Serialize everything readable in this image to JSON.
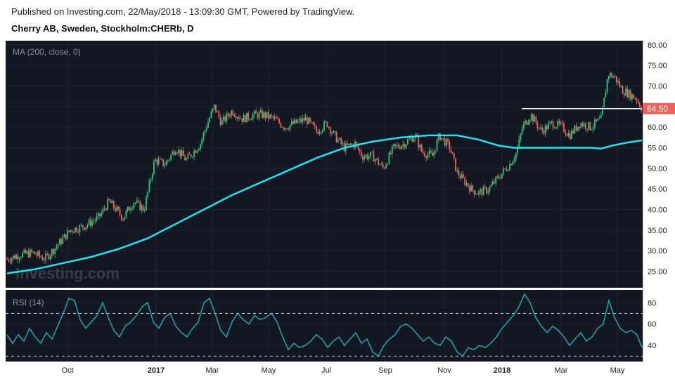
{
  "header": {
    "published": "Published on Investing.com, 22/May/2018 - 13:09:30 GMT, Powered by TradingView.",
    "symbol": "Cherry AB, Sweden, Stockholm:CHERb, D"
  },
  "watermark": "Investing.com",
  "colors": {
    "panel_bg": "#131722",
    "up": "#26c97a",
    "down": "#f0615d",
    "ma": "#1ee3f0",
    "rsi": "#1fa0a8",
    "resistance": "#ffffff",
    "price_badge": "#f0615d"
  },
  "chart_data": [
    {
      "type": "candlestick",
      "indicator_label": "MA (200, close, 0)",
      "x_ticks": [
        "Oct",
        "2017",
        "Mar",
        "May",
        "Jul",
        "Sep",
        "Nov",
        "2018",
        "Mar",
        "May"
      ],
      "y_ticks": [
        25,
        30,
        35,
        40,
        45,
        50,
        55,
        60,
        65,
        70,
        75,
        80
      ],
      "y_tick_labels": [
        "25.00",
        "30.00",
        "35.00",
        "40.00",
        "45.00",
        "50.00",
        "55.00",
        "60.00",
        "65.00",
        "70.00",
        "75.00",
        "80.00"
      ],
      "ylim": [
        21,
        81
      ],
      "last_price": 64.5,
      "last_price_label": "64.50",
      "resistance_level": 64.5,
      "price_path": [
        [
          0,
          28
        ],
        [
          18,
          29
        ],
        [
          36,
          29.5
        ],
        [
          54,
          28
        ],
        [
          70,
          31
        ],
        [
          90,
          35
        ],
        [
          110,
          36
        ],
        [
          130,
          38
        ],
        [
          145,
          42
        ],
        [
          165,
          38
        ],
        [
          180,
          42
        ],
        [
          195,
          40
        ],
        [
          210,
          52
        ],
        [
          225,
          51
        ],
        [
          240,
          55
        ],
        [
          255,
          52
        ],
        [
          275,
          56
        ],
        [
          285,
          61
        ],
        [
          295,
          65
        ],
        [
          305,
          61
        ],
        [
          320,
          64
        ],
        [
          335,
          62
        ],
        [
          350,
          63
        ],
        [
          365,
          63
        ],
        [
          380,
          62
        ],
        [
          395,
          60
        ],
        [
          410,
          61
        ],
        [
          425,
          62
        ],
        [
          440,
          59
        ],
        [
          455,
          61
        ],
        [
          465,
          58
        ],
        [
          480,
          55
        ],
        [
          495,
          56
        ],
        [
          505,
          53
        ],
        [
          520,
          53
        ],
        [
          535,
          50
        ],
        [
          550,
          55
        ],
        [
          565,
          56
        ],
        [
          580,
          58
        ],
        [
          590,
          54
        ],
        [
          605,
          53
        ],
        [
          615,
          58
        ],
        [
          630,
          55
        ],
        [
          640,
          49
        ],
        [
          650,
          47
        ],
        [
          660,
          45
        ],
        [
          670,
          44
        ],
        [
          685,
          45
        ],
        [
          700,
          48
        ],
        [
          715,
          51
        ],
        [
          725,
          54
        ],
        [
          733,
          60
        ],
        [
          745,
          63
        ],
        [
          760,
          59
        ],
        [
          775,
          61
        ],
        [
          790,
          60
        ],
        [
          800,
          58
        ],
        [
          815,
          61
        ],
        [
          830,
          60
        ],
        [
          845,
          62
        ],
        [
          855,
          73
        ],
        [
          865,
          72
        ],
        [
          875,
          69
        ],
        [
          885,
          68
        ],
        [
          895,
          67
        ],
        [
          903,
          64.5
        ]
      ],
      "ma_path": [
        [
          0,
          24.5
        ],
        [
          40,
          25.5
        ],
        [
          80,
          27
        ],
        [
          120,
          28.5
        ],
        [
          160,
          30.5
        ],
        [
          200,
          33
        ],
        [
          240,
          36.5
        ],
        [
          280,
          40
        ],
        [
          320,
          43.5
        ],
        [
          360,
          46.5
        ],
        [
          400,
          49.5
        ],
        [
          440,
          52.5
        ],
        [
          480,
          55
        ],
        [
          520,
          56.5
        ],
        [
          560,
          57.5
        ],
        [
          600,
          58
        ],
        [
          640,
          58
        ],
        [
          670,
          57
        ],
        [
          700,
          55.5
        ],
        [
          720,
          55
        ],
        [
          760,
          55
        ],
        [
          800,
          55
        ],
        [
          830,
          55
        ],
        [
          845,
          54.8
        ],
        [
          860,
          55.5
        ],
        [
          880,
          56.2
        ],
        [
          903,
          56.8
        ]
      ],
      "resistance_x": [
        732,
        903
      ]
    },
    {
      "type": "line",
      "indicator_label": "RSI (14)",
      "y_ticks": [
        40,
        60,
        80
      ],
      "ylim": [
        25,
        92
      ],
      "bands": [
        70,
        30
      ],
      "rsi_path": [
        [
          0,
          50
        ],
        [
          8,
          42
        ],
        [
          16,
          50
        ],
        [
          24,
          44
        ],
        [
          32,
          56
        ],
        [
          40,
          48
        ],
        [
          48,
          42
        ],
        [
          56,
          52
        ],
        [
          64,
          46
        ],
        [
          72,
          58
        ],
        [
          80,
          70
        ],
        [
          88,
          84
        ],
        [
          96,
          82
        ],
        [
          104,
          64
        ],
        [
          112,
          56
        ],
        [
          120,
          62
        ],
        [
          128,
          68
        ],
        [
          136,
          80
        ],
        [
          144,
          66
        ],
        [
          152,
          54
        ],
        [
          160,
          48
        ],
        [
          168,
          58
        ],
        [
          176,
          62
        ],
        [
          184,
          68
        ],
        [
          192,
          76
        ],
        [
          200,
          80
        ],
        [
          208,
          62
        ],
        [
          216,
          56
        ],
        [
          224,
          66
        ],
        [
          232,
          70
        ],
        [
          240,
          58
        ],
        [
          248,
          52
        ],
        [
          256,
          48
        ],
        [
          264,
          56
        ],
        [
          272,
          62
        ],
        [
          280,
          80
        ],
        [
          288,
          84
        ],
        [
          296,
          70
        ],
        [
          304,
          54
        ],
        [
          312,
          48
        ],
        [
          320,
          62
        ],
        [
          328,
          70
        ],
        [
          336,
          64
        ],
        [
          344,
          60
        ],
        [
          352,
          68
        ],
        [
          360,
          64
        ],
        [
          368,
          66
        ],
        [
          376,
          70
        ],
        [
          384,
          62
        ],
        [
          392,
          48
        ],
        [
          400,
          36
        ],
        [
          408,
          42
        ],
        [
          416,
          38
        ],
        [
          424,
          40
        ],
        [
          432,
          44
        ],
        [
          440,
          50
        ],
        [
          448,
          46
        ],
        [
          456,
          38
        ],
        [
          464,
          44
        ],
        [
          472,
          48
        ],
        [
          480,
          40
        ],
        [
          488,
          46
        ],
        [
          496,
          52
        ],
        [
          504,
          42
        ],
        [
          512,
          46
        ],
        [
          520,
          34
        ],
        [
          528,
          30
        ],
        [
          536,
          40
        ],
        [
          544,
          46
        ],
        [
          552,
          50
        ],
        [
          560,
          58
        ],
        [
          568,
          60
        ],
        [
          576,
          56
        ],
        [
          584,
          50
        ],
        [
          592,
          44
        ],
        [
          600,
          48
        ],
        [
          608,
          42
        ],
        [
          616,
          40
        ],
        [
          624,
          48
        ],
        [
          632,
          44
        ],
        [
          640,
          34
        ],
        [
          648,
          30
        ],
        [
          656,
          38
        ],
        [
          664,
          36
        ],
        [
          672,
          40
        ],
        [
          680,
          38
        ],
        [
          688,
          42
        ],
        [
          696,
          48
        ],
        [
          704,
          56
        ],
        [
          712,
          62
        ],
        [
          720,
          68
        ],
        [
          728,
          76
        ],
        [
          736,
          88
        ],
        [
          744,
          80
        ],
        [
          752,
          66
        ],
        [
          760,
          58
        ],
        [
          768,
          52
        ],
        [
          776,
          58
        ],
        [
          784,
          54
        ],
        [
          792,
          48
        ],
        [
          800,
          40
        ],
        [
          808,
          46
        ],
        [
          816,
          52
        ],
        [
          824,
          44
        ],
        [
          832,
          48
        ],
        [
          840,
          56
        ],
        [
          848,
          60
        ],
        [
          856,
          82
        ],
        [
          864,
          66
        ],
        [
          872,
          56
        ],
        [
          880,
          52
        ],
        [
          888,
          54
        ],
        [
          896,
          50
        ],
        [
          903,
          38
        ]
      ],
      "ylabel_ticks": [
        "40",
        "60",
        "80"
      ]
    }
  ]
}
